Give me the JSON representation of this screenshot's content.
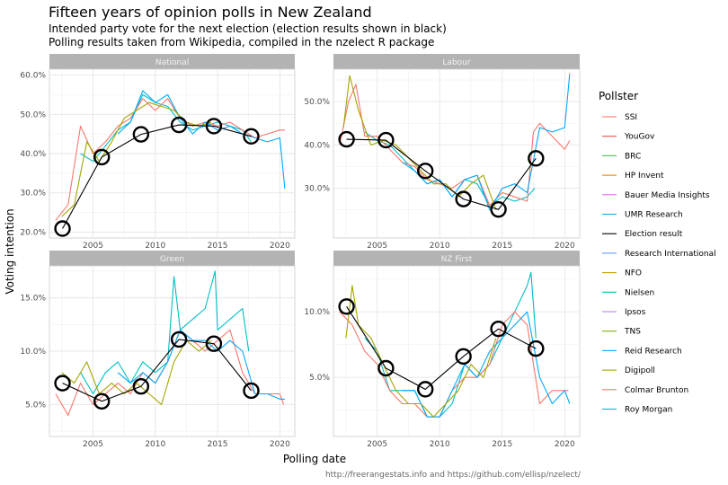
{
  "header": {
    "title": "Fifteen years of opinion polls in New Zealand",
    "subtitle_line1": "Intended party vote for the next election (election results shown in black)",
    "subtitle_line2": "Polling results taken from Wikipedia, compiled in the nzelect R package"
  },
  "caption": "http://freerangestats.info and https://github.com/ellisp/nzelect/",
  "chart_data": {
    "type": "line",
    "xlabel": "Polling date",
    "ylabel": "Voting intention",
    "xlim": [
      2001.5,
      2021.2
    ],
    "x_ticks": [
      2005,
      2010,
      2015,
      2020
    ],
    "legend": {
      "title": "Pollster",
      "placement": "right",
      "items": [
        {
          "name": "SSI",
          "color": "#f8766d"
        },
        {
          "name": "YouGov",
          "color": "#e7534e"
        },
        {
          "name": "BRC",
          "color": "#4dbb4f"
        },
        {
          "name": "HP Invent",
          "color": "#e58700"
        },
        {
          "name": "Bauer Media Insights",
          "color": "#e76bf3"
        },
        {
          "name": "UMR Research",
          "color": "#1fa8e0"
        },
        {
          "name": "Election result",
          "color": "#000000"
        },
        {
          "name": "Research International",
          "color": "#619cff"
        },
        {
          "name": "NFO",
          "color": "#c99800"
        },
        {
          "name": "Nielsen",
          "color": "#00c19a"
        },
        {
          "name": "Ipsos",
          "color": "#b983ff"
        },
        {
          "name": "TNS",
          "color": "#7cae00"
        },
        {
          "name": "Reid Research",
          "color": "#00a9ff"
        },
        {
          "name": "Digipoll",
          "color": "#a3a500"
        },
        {
          "name": "Colmar Brunton",
          "color": "#f8766d"
        },
        {
          "name": "Roy Morgan",
          "color": "#00bfc4"
        }
      ]
    },
    "panels": [
      {
        "party": "National",
        "ylim": [
          0.185,
          0.615
        ],
        "y_ticks": [
          0.2,
          0.3,
          0.4,
          0.5,
          0.6
        ],
        "y_tick_labels": [
          "20.0%",
          "30.0%",
          "40.0%",
          "50.0%",
          "60.0%"
        ],
        "elections": {
          "x": [
            2002.55,
            2005.7,
            2008.85,
            2011.9,
            2014.7,
            2017.7
          ],
          "y": [
            0.209,
            0.391,
            0.449,
            0.473,
            0.47,
            0.444
          ]
        },
        "series": [
          {
            "name": "Roy Morgan",
            "x": [
              2004.0,
              2005.0,
              2006.0,
              2007.0,
              2008.0,
              2009.0,
              2010.0,
              2011.0,
              2012.0,
              2013.0,
              2014.0,
              2015.0,
              2016.0,
              2017.0,
              2017.7
            ],
            "y": [
              0.4,
              0.38,
              0.42,
              0.46,
              0.48,
              0.55,
              0.53,
              0.52,
              0.48,
              0.46,
              0.47,
              0.48,
              0.47,
              0.46,
              0.43
            ]
          },
          {
            "name": "Colmar Brunton",
            "x": [
              2002.0,
              2003.0,
              2004.0,
              2005.0,
              2006.0,
              2007.0,
              2008.0,
              2009.0,
              2010.0,
              2011.0,
              2012.0,
              2013.0,
              2014.0,
              2015.0,
              2016.0,
              2017.0,
              2018.0,
              2019.0,
              2020.0,
              2020.4
            ],
            "y": [
              0.23,
              0.27,
              0.47,
              0.4,
              0.43,
              0.47,
              0.49,
              0.54,
              0.51,
              0.54,
              0.49,
              0.47,
              0.48,
              0.47,
              0.48,
              0.46,
              0.44,
              0.45,
              0.46,
              0.46
            ]
          },
          {
            "name": "Reid Research",
            "x": [
              2007.0,
              2008.0,
              2009.0,
              2010.0,
              2011.0,
              2012.0,
              2013.0,
              2014.0,
              2015.0,
              2016.0,
              2017.0,
              2018.0,
              2019.0,
              2020.0,
              2020.4
            ],
            "y": [
              0.45,
              0.48,
              0.56,
              0.53,
              0.55,
              0.49,
              0.45,
              0.48,
              0.46,
              0.47,
              0.45,
              0.44,
              0.43,
              0.44,
              0.31
            ]
          },
          {
            "name": "Digipoll",
            "x": [
              2002.5,
              2003.5,
              2004.5,
              2005.5,
              2006.5,
              2007.5,
              2008.5,
              2009.5,
              2010.5,
              2011.5,
              2012.5,
              2013.5,
              2014.5
            ],
            "y": [
              0.24,
              0.27,
              0.43,
              0.38,
              0.43,
              0.49,
              0.51,
              0.53,
              0.52,
              0.51,
              0.48,
              0.47,
              0.48
            ]
          }
        ]
      },
      {
        "party": "Labour",
        "ylim": [
          0.185,
          0.575
        ],
        "y_ticks": [
          0.3,
          0.4,
          0.5
        ],
        "y_tick_labels": [
          "30.0%",
          "40.0%",
          "50.0%"
        ],
        "elections": {
          "x": [
            2002.55,
            2005.7,
            2008.85,
            2011.9,
            2014.7,
            2017.7
          ],
          "y": [
            0.413,
            0.411,
            0.34,
            0.275,
            0.251,
            0.369
          ]
        },
        "series": [
          {
            "name": "Roy Morgan",
            "x": [
              2004.0,
              2005.0,
              2006.0,
              2007.0,
              2008.0,
              2009.0,
              2010.0,
              2011.0,
              2012.0,
              2013.0,
              2014.0,
              2015.0,
              2016.0,
              2017.0,
              2017.6
            ],
            "y": [
              0.43,
              0.41,
              0.4,
              0.37,
              0.34,
              0.31,
              0.32,
              0.28,
              0.32,
              0.31,
              0.26,
              0.28,
              0.27,
              0.28,
              0.3
            ]
          },
          {
            "name": "Colmar Brunton",
            "x": [
              2002.0,
              2002.7,
              2003.3,
              2004.0,
              2005.0,
              2006.0,
              2007.0,
              2008.0,
              2009.0,
              2010.0,
              2011.0,
              2012.0,
              2013.0,
              2014.0,
              2015.0,
              2016.0,
              2017.0,
              2017.5,
              2018.0,
              2019.0,
              2020.0,
              2020.4
            ],
            "y": [
              0.4,
              0.5,
              0.54,
              0.42,
              0.42,
              0.39,
              0.36,
              0.35,
              0.32,
              0.31,
              0.3,
              0.32,
              0.33,
              0.26,
              0.29,
              0.28,
              0.27,
              0.43,
              0.45,
              0.42,
              0.39,
              0.41
            ]
          },
          {
            "name": "Reid Research",
            "x": [
              2007.0,
              2008.0,
              2009.0,
              2010.0,
              2011.0,
              2012.0,
              2013.0,
              2014.0,
              2015.0,
              2016.0,
              2017.0,
              2018.0,
              2019.0,
              2020.0,
              2020.4
            ],
            "y": [
              0.36,
              0.34,
              0.31,
              0.32,
              0.28,
              0.32,
              0.33,
              0.25,
              0.3,
              0.31,
              0.29,
              0.44,
              0.43,
              0.44,
              0.565
            ]
          },
          {
            "name": "Digipoll",
            "x": [
              2002.3,
              2002.8,
              2003.5,
              2004.5,
              2005.5,
              2006.5,
              2007.5,
              2008.5,
              2009.5,
              2010.5,
              2011.5,
              2012.5,
              2013.5,
              2014.5
            ],
            "y": [
              0.44,
              0.56,
              0.48,
              0.4,
              0.41,
              0.4,
              0.37,
              0.34,
              0.31,
              0.31,
              0.28,
              0.31,
              0.33,
              0.25
            ]
          }
        ]
      },
      {
        "party": "Green",
        "ylim": [
          0.02,
          0.18
        ],
        "y_ticks": [
          0.05,
          0.1,
          0.15
        ],
        "y_tick_labels": [
          "5.0%",
          "10.0%",
          "15.0%"
        ],
        "elections": {
          "x": [
            2002.55,
            2005.7,
            2008.85,
            2011.9,
            2014.7,
            2017.7
          ],
          "y": [
            0.07,
            0.053,
            0.067,
            0.111,
            0.107,
            0.063
          ]
        },
        "series": [
          {
            "name": "Roy Morgan",
            "x": [
              2004.0,
              2005.0,
              2006.0,
              2007.0,
              2008.0,
              2009.0,
              2010.0,
              2011.0,
              2011.5,
              2012.0,
              2013.0,
              2014.0,
              2014.8,
              2015.0,
              2016.0,
              2017.0,
              2017.5
            ],
            "y": [
              0.08,
              0.06,
              0.08,
              0.09,
              0.07,
              0.09,
              0.08,
              0.09,
              0.17,
              0.12,
              0.13,
              0.14,
              0.175,
              0.12,
              0.13,
              0.14,
              0.1
            ]
          },
          {
            "name": "Colmar Brunton",
            "x": [
              2002.0,
              2003.0,
              2004.0,
              2005.0,
              2006.0,
              2007.0,
              2008.0,
              2009.0,
              2010.0,
              2011.0,
              2012.0,
              2013.0,
              2014.0,
              2015.0,
              2016.0,
              2017.0,
              2018.0,
              2019.0,
              2020.0,
              2020.3
            ],
            "y": [
              0.06,
              0.04,
              0.07,
              0.05,
              0.06,
              0.07,
              0.06,
              0.08,
              0.07,
              0.09,
              0.12,
              0.11,
              0.1,
              0.11,
              0.12,
              0.08,
              0.06,
              0.06,
              0.06,
              0.05
            ]
          },
          {
            "name": "Reid Research",
            "x": [
              2007.0,
              2008.0,
              2009.0,
              2010.0,
              2011.0,
              2012.0,
              2013.0,
              2014.0,
              2015.0,
              2016.0,
              2017.0,
              2018.0,
              2019.0,
              2020.0,
              2020.4
            ],
            "y": [
              0.08,
              0.07,
              0.08,
              0.07,
              0.09,
              0.12,
              0.11,
              0.11,
              0.1,
              0.11,
              0.1,
              0.06,
              0.06,
              0.055,
              0.055
            ]
          },
          {
            "name": "Digipoll",
            "x": [
              2002.5,
              2003.5,
              2004.5,
              2005.5,
              2006.5,
              2007.5,
              2008.5,
              2009.5,
              2010.5,
              2011.5,
              2012.5,
              2013.5,
              2014.5
            ],
            "y": [
              0.08,
              0.07,
              0.09,
              0.06,
              0.07,
              0.06,
              0.07,
              0.06,
              0.05,
              0.09,
              0.11,
              0.1,
              0.11
            ]
          }
        ]
      },
      {
        "party": "NZ First",
        "ylim": [
          0.005,
          0.135
        ],
        "y_ticks": [
          0.05,
          0.1
        ],
        "y_tick_labels": [
          "5.0%",
          "10.0%"
        ],
        "elections": {
          "x": [
            2002.55,
            2005.7,
            2008.85,
            2011.9,
            2014.7,
            2017.7
          ],
          "y": [
            0.104,
            0.057,
            0.041,
            0.066,
            0.087,
            0.072
          ]
        },
        "series": [
          {
            "name": "Roy Morgan",
            "x": [
              2004.0,
              2005.0,
              2006.0,
              2007.0,
              2008.0,
              2009.0,
              2010.0,
              2011.0,
              2012.0,
              2013.0,
              2014.0,
              2015.0,
              2016.0,
              2017.0,
              2017.3,
              2017.7
            ],
            "y": [
              0.08,
              0.07,
              0.04,
              0.04,
              0.04,
              0.02,
              0.02,
              0.03,
              0.06,
              0.05,
              0.06,
              0.08,
              0.1,
              0.12,
              0.13,
              0.08
            ]
          },
          {
            "name": "Colmar Brunton",
            "x": [
              2002.0,
              2003.0,
              2004.0,
              2005.0,
              2006.0,
              2007.0,
              2008.0,
              2009.0,
              2010.0,
              2011.0,
              2012.0,
              2013.0,
              2014.0,
              2015.0,
              2016.0,
              2017.0,
              2018.0,
              2019.0,
              2020.0,
              2020.3
            ],
            "y": [
              0.1,
              0.09,
              0.07,
              0.06,
              0.04,
              0.03,
              0.03,
              0.02,
              0.02,
              0.04,
              0.05,
              0.05,
              0.06,
              0.09,
              0.1,
              0.09,
              0.03,
              0.04,
              0.04,
              0.04
            ]
          },
          {
            "name": "Reid Research",
            "x": [
              2007.0,
              2008.0,
              2009.0,
              2010.0,
              2011.0,
              2012.0,
              2013.0,
              2014.0,
              2015.0,
              2016.0,
              2017.0,
              2018.0,
              2019.0,
              2020.0,
              2020.4
            ],
            "y": [
              0.04,
              0.04,
              0.02,
              0.02,
              0.04,
              0.06,
              0.05,
              0.07,
              0.08,
              0.09,
              0.1,
              0.05,
              0.03,
              0.04,
              0.03
            ]
          },
          {
            "name": "Digipoll",
            "x": [
              2002.5,
              2003.0,
              2003.5,
              2004.5,
              2005.5,
              2006.5,
              2007.5,
              2008.5,
              2009.5,
              2010.5,
              2011.5,
              2012.5,
              2013.5,
              2014.5
            ],
            "y": [
              0.08,
              0.12,
              0.09,
              0.08,
              0.06,
              0.04,
              0.03,
              0.03,
              0.02,
              0.03,
              0.04,
              0.06,
              0.05,
              0.08
            ]
          }
        ]
      }
    ]
  }
}
